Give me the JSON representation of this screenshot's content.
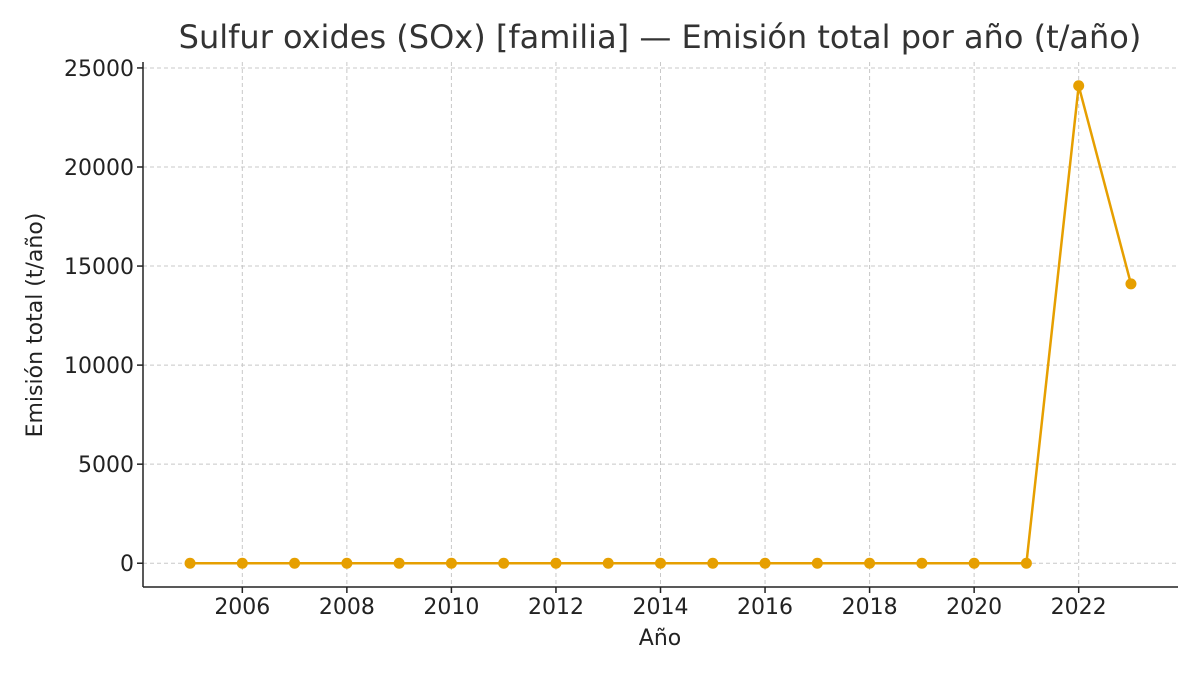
{
  "chart_data": {
    "type": "line",
    "title": "Sulfur oxides (SOx) [familia] — Emisión total por año (t/año)",
    "xlabel": "Año",
    "ylabel": "Emisión total (t/año)",
    "x": [
      2005,
      2006,
      2007,
      2008,
      2009,
      2010,
      2011,
      2012,
      2013,
      2014,
      2015,
      2016,
      2017,
      2018,
      2019,
      2020,
      2021,
      2022,
      2023
    ],
    "series": [
      {
        "values": [
          0,
          0,
          0,
          0,
          0,
          0,
          0,
          0,
          0,
          0,
          0,
          0,
          0,
          0,
          0,
          0,
          0,
          24100,
          14100
        ],
        "color": "#E69F00"
      }
    ],
    "xlim": [
      2004.1,
      2023.9
    ],
    "ylim": [
      -1200,
      25300
    ],
    "xticks": [
      "2006",
      "2008",
      "2010",
      "2012",
      "2014",
      "2016",
      "2018",
      "2020",
      "2022"
    ],
    "yticks": [
      "0",
      "5000",
      "10000",
      "15000",
      "20000",
      "25000"
    ],
    "grid": true,
    "legend": "none"
  }
}
